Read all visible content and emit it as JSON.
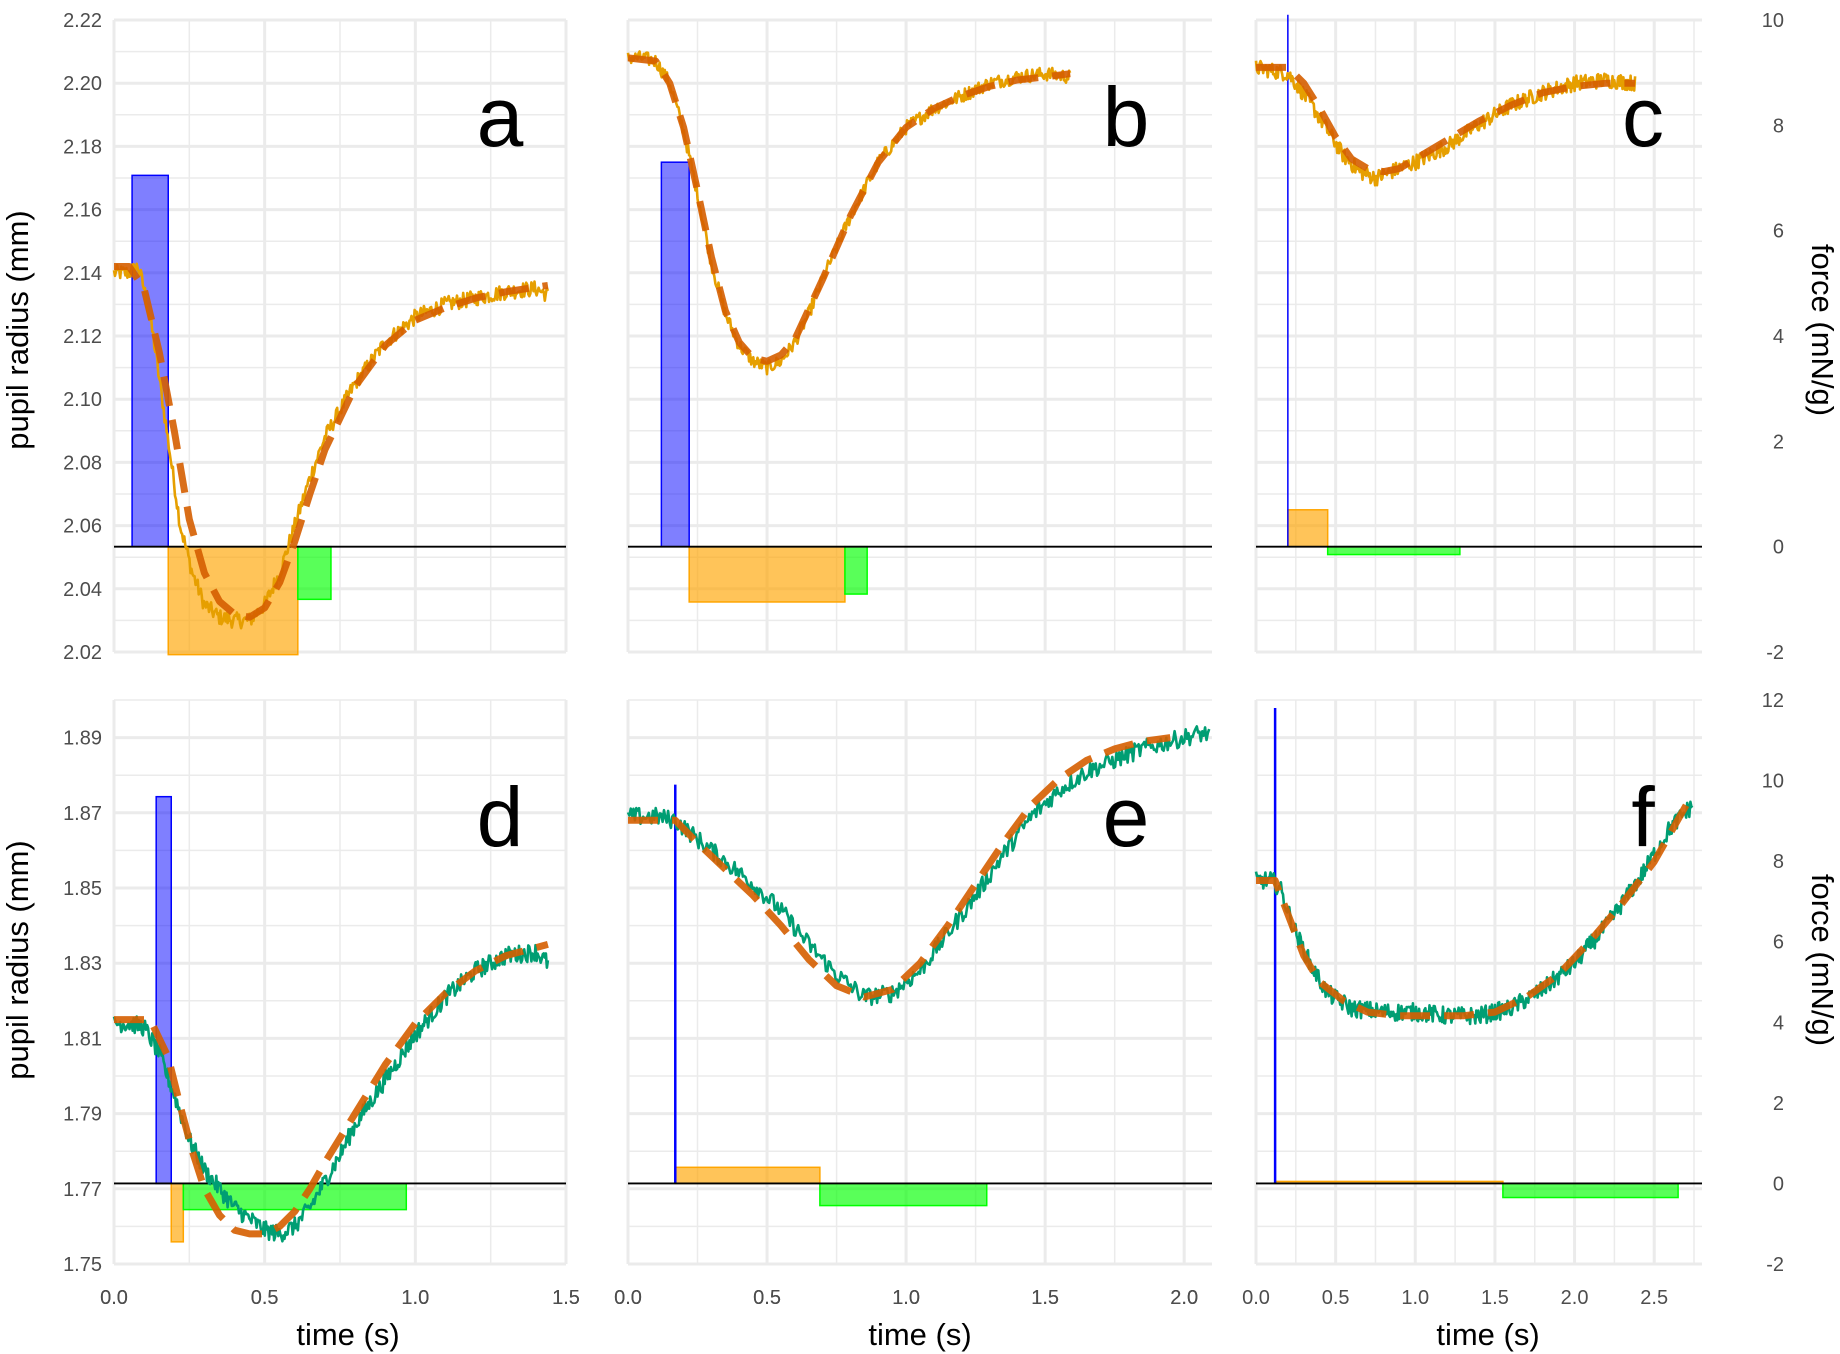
{
  "figure": {
    "xlabel": "time (s)",
    "ylabel_left": "pupil radius (mm)",
    "ylabel_right": "force (mN/g)"
  },
  "colors": {
    "background": "#ffffff",
    "gridline": "#ebebeb",
    "tick_text": "#4d4d4d",
    "baseline": "#000000",
    "pupil_top": "#e69f00",
    "pupil_bottom": "#009e73",
    "fit_line": "#d55e00",
    "force_blue": "#0000ff",
    "force_orange": "#ffa500",
    "force_green": "#00ff00"
  },
  "chart_data": [
    {
      "panel": "a",
      "type": "line",
      "pupil_color": "pupil_top",
      "xlim": [
        0,
        1.5
      ],
      "xticks": [
        0.0,
        0.5,
        1.0,
        1.5
      ],
      "xtick_labels": [
        "0.0",
        "0.5",
        "1.0",
        "1.5"
      ],
      "ylim": [
        2.02,
        2.22
      ],
      "yticks": [
        2.02,
        2.04,
        2.06,
        2.08,
        2.1,
        2.12,
        2.14,
        2.16,
        2.18,
        2.2,
        2.22
      ],
      "ytick_labels": [
        "2.02",
        "2.04",
        "2.06",
        "2.08",
        "2.10",
        "2.12",
        "2.14",
        "2.16",
        "2.18",
        "2.20",
        "2.22"
      ],
      "force_ylim": [
        -2,
        10
      ],
      "force_yticks": [],
      "force_ytick_labels": [],
      "pupil": {
        "x": [
          0.0,
          0.05,
          0.08,
          0.1,
          0.13,
          0.16,
          0.19,
          0.22,
          0.26,
          0.3,
          0.35,
          0.4,
          0.45,
          0.5,
          0.55,
          0.6,
          0.65,
          0.7,
          0.8,
          0.9,
          1.0,
          1.1,
          1.2,
          1.3,
          1.4,
          1.44
        ],
        "y": [
          2.14,
          2.14,
          2.142,
          2.135,
          2.12,
          2.1,
          2.08,
          2.06,
          2.045,
          2.035,
          2.031,
          2.03,
          2.03,
          2.035,
          2.045,
          2.06,
          2.075,
          2.088,
          2.105,
          2.118,
          2.126,
          2.13,
          2.132,
          2.134,
          2.135,
          2.133
        ]
      },
      "fit": {
        "x": [
          0.0,
          0.05,
          0.1,
          0.15,
          0.2,
          0.25,
          0.3,
          0.35,
          0.4,
          0.45,
          0.5,
          0.55,
          0.6,
          0.65,
          0.7,
          0.8,
          0.9,
          1.0,
          1.1,
          1.2,
          1.3,
          1.44
        ],
        "y": [
          2.142,
          2.142,
          2.135,
          2.115,
          2.09,
          2.062,
          2.045,
          2.036,
          2.032,
          2.031,
          2.034,
          2.042,
          2.055,
          2.07,
          2.084,
          2.104,
          2.117,
          2.125,
          2.129,
          2.132,
          2.134,
          2.136
        ]
      },
      "force_bars": [
        {
          "color": "force_blue",
          "x0": 0.06,
          "x1": 0.18,
          "value": 7.05
        },
        {
          "color": "force_orange",
          "x0": 0.18,
          "x1": 0.61,
          "value": -2.05
        },
        {
          "color": "force_green",
          "x0": 0.61,
          "x1": 0.72,
          "value": -1.0
        }
      ],
      "force_lines": [],
      "noise": 0.0025
    },
    {
      "panel": "b",
      "type": "line",
      "pupil_color": "pupil_top",
      "xlim": [
        0,
        2.1
      ],
      "xticks": [
        0.0,
        0.5,
        1.0,
        1.5,
        2.0
      ],
      "xtick_labels": [
        "0.0",
        "0.5",
        "1.0",
        "1.5",
        "2.0"
      ],
      "ylim": [
        2.02,
        2.22
      ],
      "yticks": [],
      "ytick_labels": [],
      "force_ylim": [
        -2,
        10
      ],
      "force_yticks": [],
      "force_ytick_labels": [],
      "pupil": {
        "x": [
          0.0,
          0.05,
          0.1,
          0.15,
          0.2,
          0.25,
          0.3,
          0.35,
          0.4,
          0.45,
          0.5,
          0.55,
          0.6,
          0.65,
          0.7,
          0.8,
          0.9,
          1.0,
          1.1,
          1.2,
          1.3,
          1.4,
          1.5,
          1.59
        ],
        "y": [
          2.208,
          2.208,
          2.207,
          2.2,
          2.185,
          2.165,
          2.143,
          2.127,
          2.117,
          2.112,
          2.11,
          2.112,
          2.118,
          2.127,
          2.138,
          2.158,
          2.175,
          2.186,
          2.192,
          2.196,
          2.2,
          2.202,
          2.203,
          2.202
        ]
      },
      "fit": {
        "x": [
          0.0,
          0.1,
          0.15,
          0.2,
          0.25,
          0.3,
          0.35,
          0.4,
          0.45,
          0.5,
          0.55,
          0.6,
          0.7,
          0.8,
          0.9,
          1.0,
          1.1,
          1.2,
          1.3,
          1.4,
          1.5,
          1.59
        ],
        "y": [
          2.208,
          2.207,
          2.2,
          2.186,
          2.166,
          2.145,
          2.128,
          2.118,
          2.113,
          2.112,
          2.114,
          2.119,
          2.138,
          2.158,
          2.175,
          2.186,
          2.192,
          2.196,
          2.199,
          2.201,
          2.202,
          2.203
        ]
      },
      "force_bars": [
        {
          "color": "force_blue",
          "x0": 0.12,
          "x1": 0.22,
          "value": 7.3
        },
        {
          "color": "force_orange",
          "x0": 0.22,
          "x1": 0.78,
          "value": -1.05
        },
        {
          "color": "force_green",
          "x0": 0.78,
          "x1": 0.86,
          "value": -0.9
        }
      ],
      "force_lines": [],
      "noise": 0.0022
    },
    {
      "panel": "c",
      "type": "line",
      "pupil_color": "pupil_top",
      "xlim": [
        0,
        2.8
      ],
      "xticks": [
        0.0,
        0.5,
        1.0,
        1.5,
        2.0,
        2.5
      ],
      "xtick_labels": [],
      "ylim": [
        2.02,
        2.22
      ],
      "yticks": [],
      "ytick_labels": [],
      "force_ylim": [
        -2,
        10
      ],
      "force_yticks": [
        -2,
        0,
        2,
        4,
        6,
        8,
        10
      ],
      "force_ytick_labels": [
        "-2",
        "0",
        "2",
        "4",
        "6",
        "8",
        "10"
      ],
      "pupil": {
        "x": [
          0.0,
          0.1,
          0.2,
          0.25,
          0.35,
          0.45,
          0.55,
          0.65,
          0.75,
          0.85,
          1.0,
          1.2,
          1.4,
          1.6,
          1.8,
          2.0,
          2.2,
          2.38
        ],
        "y": [
          2.205,
          2.204,
          2.203,
          2.2,
          2.193,
          2.185,
          2.177,
          2.172,
          2.17,
          2.172,
          2.175,
          2.18,
          2.187,
          2.193,
          2.197,
          2.2,
          2.201,
          2.2
        ]
      },
      "fit": {
        "x": [
          0.0,
          0.2,
          0.3,
          0.4,
          0.5,
          0.6,
          0.7,
          0.8,
          0.9,
          1.0,
          1.2,
          1.4,
          1.6,
          1.8,
          2.0,
          2.2,
          2.38
        ],
        "y": [
          2.205,
          2.205,
          2.2,
          2.192,
          2.183,
          2.176,
          2.173,
          2.172,
          2.173,
          2.176,
          2.182,
          2.188,
          2.193,
          2.197,
          2.199,
          2.2,
          2.2
        ]
      },
      "force_bars": [
        {
          "color": "force_orange",
          "x0": 0.2,
          "x1": 0.45,
          "value": 0.7
        },
        {
          "color": "force_green",
          "x0": 0.45,
          "x1": 1.28,
          "value": -0.15
        }
      ],
      "force_lines": [
        {
          "color": "force_blue",
          "x": 0.2,
          "value": 10.1,
          "width": 1.5
        }
      ],
      "noise": 0.0025
    },
    {
      "panel": "d",
      "type": "line",
      "pupil_color": "pupil_bottom",
      "xlim": [
        0,
        1.5
      ],
      "xticks": [
        0.0,
        0.5,
        1.0,
        1.5
      ],
      "xtick_labels": [
        "0.0",
        "0.5",
        "1.0",
        "1.5"
      ],
      "ylim": [
        1.75,
        1.9
      ],
      "yticks": [
        1.75,
        1.77,
        1.79,
        1.81,
        1.83,
        1.85,
        1.87,
        1.89
      ],
      "ytick_labels": [
        "1.75",
        "1.77",
        "1.79",
        "1.81",
        "1.83",
        "1.85",
        "1.87",
        "1.89"
      ],
      "force_ylim": [
        -2,
        12
      ],
      "force_yticks": [],
      "force_ytick_labels": [],
      "pupil": {
        "x": [
          0.0,
          0.05,
          0.1,
          0.15,
          0.2,
          0.25,
          0.3,
          0.35,
          0.4,
          0.45,
          0.5,
          0.55,
          0.6,
          0.65,
          0.7,
          0.75,
          0.8,
          0.9,
          1.0,
          1.1,
          1.2,
          1.3,
          1.4,
          1.44
        ],
        "y": [
          1.814,
          1.814,
          1.813,
          1.806,
          1.795,
          1.783,
          1.775,
          1.77,
          1.765,
          1.762,
          1.759,
          1.758,
          1.76,
          1.765,
          1.772,
          1.779,
          1.787,
          1.799,
          1.811,
          1.821,
          1.828,
          1.832,
          1.833,
          1.83
        ]
      },
      "fit": {
        "x": [
          0.0,
          0.12,
          0.18,
          0.22,
          0.26,
          0.3,
          0.35,
          0.4,
          0.45,
          0.5,
          0.55,
          0.6,
          0.65,
          0.7,
          0.8,
          0.9,
          1.0,
          1.1,
          1.2,
          1.3,
          1.44
        ],
        "y": [
          1.815,
          1.815,
          1.805,
          1.792,
          1.78,
          1.77,
          1.763,
          1.759,
          1.758,
          1.758,
          1.76,
          1.764,
          1.77,
          1.777,
          1.79,
          1.803,
          1.814,
          1.822,
          1.828,
          1.832,
          1.835
        ]
      },
      "force_bars": [
        {
          "color": "force_blue",
          "x0": 0.14,
          "x1": 0.19,
          "value": 9.6
        },
        {
          "color": "force_orange",
          "x0": 0.19,
          "x1": 0.23,
          "value": -1.45
        },
        {
          "color": "force_green",
          "x0": 0.23,
          "x1": 0.97,
          "value": -0.65
        }
      ],
      "force_lines": [],
      "noise": 0.0024
    },
    {
      "panel": "e",
      "type": "line",
      "pupil_color": "pupil_bottom",
      "xlim": [
        0,
        2.1
      ],
      "xticks": [
        0.0,
        0.5,
        1.0,
        1.5,
        2.0
      ],
      "xtick_labels": [
        "0.0",
        "0.5",
        "1.0",
        "1.5",
        "2.0"
      ],
      "ylim": [
        1.75,
        1.9
      ],
      "yticks": [],
      "ytick_labels": [],
      "force_ylim": [
        -2,
        12
      ],
      "force_yticks": [],
      "force_ytick_labels": [],
      "pupil": {
        "x": [
          0.0,
          0.1,
          0.17,
          0.25,
          0.35,
          0.45,
          0.55,
          0.65,
          0.75,
          0.85,
          0.95,
          1.05,
          1.15,
          1.25,
          1.35,
          1.45,
          1.55,
          1.65,
          1.75,
          1.85,
          1.95,
          2.05,
          2.09
        ],
        "y": [
          1.869,
          1.869,
          1.868,
          1.863,
          1.857,
          1.851,
          1.844,
          1.835,
          1.827,
          1.821,
          1.822,
          1.828,
          1.838,
          1.848,
          1.859,
          1.869,
          1.876,
          1.881,
          1.884,
          1.887,
          1.889,
          1.891,
          1.891
        ]
      },
      "fit": {
        "x": [
          0.0,
          0.17,
          0.25,
          0.35,
          0.45,
          0.55,
          0.65,
          0.75,
          0.85,
          0.95,
          1.05,
          1.15,
          1.25,
          1.35,
          1.45,
          1.55,
          1.65,
          1.75,
          1.85,
          1.95
        ],
        "y": [
          1.868,
          1.868,
          1.862,
          1.855,
          1.848,
          1.84,
          1.831,
          1.824,
          1.821,
          1.823,
          1.83,
          1.84,
          1.851,
          1.862,
          1.872,
          1.879,
          1.884,
          1.887,
          1.889,
          1.89
        ]
      },
      "force_bars": [
        {
          "color": "force_orange",
          "x0": 0.17,
          "x1": 0.69,
          "value": 0.4
        },
        {
          "color": "force_green",
          "x0": 0.69,
          "x1": 1.29,
          "value": -0.55
        }
      ],
      "force_lines": [
        {
          "color": "force_blue",
          "x": 0.17,
          "value": 9.9,
          "width": 2.5
        }
      ],
      "noise": 0.0024
    },
    {
      "panel": "f",
      "type": "line",
      "pupil_color": "pupil_bottom",
      "xlim": [
        0,
        2.8
      ],
      "xticks": [
        0.0,
        0.5,
        1.0,
        1.5,
        2.0,
        2.5
      ],
      "xtick_labels": [
        "0.0",
        "0.5",
        "1.0",
        "1.5",
        "2.0",
        "2.5"
      ],
      "ylim": [
        1.75,
        1.9
      ],
      "yticks": [],
      "ytick_labels": [],
      "force_ylim": [
        -2,
        12
      ],
      "force_yticks": [
        -2,
        0,
        2,
        4,
        6,
        8,
        10,
        12
      ],
      "force_ytick_labels": [
        "-2",
        "0",
        "2",
        "4",
        "6",
        "8",
        "10",
        "12"
      ],
      "pupil": {
        "x": [
          0.0,
          0.1,
          0.15,
          0.25,
          0.35,
          0.45,
          0.6,
          0.8,
          1.0,
          1.2,
          1.4,
          1.6,
          1.8,
          2.0,
          2.2,
          2.4,
          2.6,
          2.74
        ],
        "y": [
          1.852,
          1.852,
          1.85,
          1.838,
          1.829,
          1.822,
          1.818,
          1.817,
          1.817,
          1.816,
          1.816,
          1.818,
          1.823,
          1.83,
          1.84,
          1.852,
          1.866,
          1.872
        ]
      },
      "fit": {
        "x": [
          0.0,
          0.12,
          0.2,
          0.3,
          0.4,
          0.55,
          0.7,
          0.9,
          1.1,
          1.3,
          1.5,
          1.7,
          1.9,
          2.1,
          2.3,
          2.5,
          2.7
        ],
        "y": [
          1.852,
          1.852,
          1.843,
          1.832,
          1.825,
          1.82,
          1.817,
          1.816,
          1.816,
          1.816,
          1.817,
          1.821,
          1.827,
          1.836,
          1.846,
          1.857,
          1.872
        ]
      },
      "force_bars": [
        {
          "color": "force_orange",
          "x0": 0.12,
          "x1": 1.55,
          "value": 0.05
        },
        {
          "color": "force_green",
          "x0": 1.55,
          "x1": 2.65,
          "value": -0.35
        }
      ],
      "force_lines": [
        {
          "color": "force_blue",
          "x": 0.12,
          "value": 11.8,
          "width": 2.5
        }
      ],
      "noise": 0.0024
    }
  ]
}
